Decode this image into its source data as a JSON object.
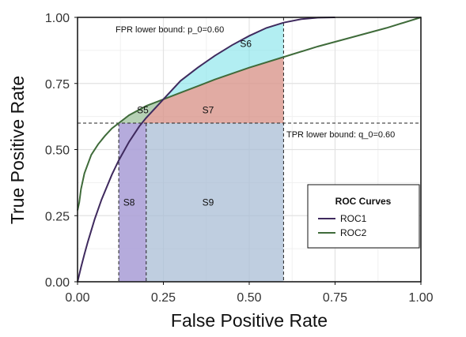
{
  "chart_data": {
    "type": "line",
    "xlabel": "False Positive Rate",
    "ylabel": "True Positive Rate",
    "xlim": [
      0,
      1
    ],
    "ylim": [
      0,
      1
    ],
    "xticks": [
      "0.00",
      "0.25",
      "0.50",
      "0.75",
      "1.00"
    ],
    "yticks": [
      "0.00",
      "0.25",
      "0.50",
      "0.75",
      "1.00"
    ],
    "grid": true,
    "colors": {
      "roc1": "#3f2a5e",
      "roc2": "#3f6b3a"
    },
    "series": [
      {
        "name": "ROC1",
        "x": [
          0,
          0.01,
          0.02,
          0.03,
          0.05,
          0.07,
          0.1,
          0.12,
          0.15,
          0.18,
          0.2,
          0.25,
          0.3,
          0.35,
          0.4,
          0.45,
          0.5,
          0.55,
          0.6,
          0.65,
          0.7,
          0.75
        ],
        "y": [
          0,
          0.054,
          0.104,
          0.151,
          0.237,
          0.311,
          0.405,
          0.459,
          0.529,
          0.588,
          0.62,
          0.69,
          0.76,
          0.81,
          0.855,
          0.895,
          0.93,
          0.96,
          0.98,
          0.993,
          0.999,
          1.0
        ]
      },
      {
        "name": "ROC2",
        "x": [
          0,
          0.005,
          0.01,
          0.02,
          0.04,
          0.06,
          0.08,
          0.1,
          0.15,
          0.2,
          0.25,
          0.3,
          0.4,
          0.5,
          0.6,
          0.7,
          0.8,
          0.9,
          1.0
        ],
        "y": [
          0.27,
          0.3,
          0.35,
          0.41,
          0.48,
          0.52,
          0.552,
          0.58,
          0.63,
          0.665,
          0.69,
          0.715,
          0.765,
          0.81,
          0.85,
          0.89,
          0.925,
          0.96,
          1.0
        ]
      }
    ],
    "bounds": {
      "fpr": {
        "value": 0.6,
        "label": "FPR lower bound: p_0=0.60"
      },
      "tpr": {
        "value": 0.6,
        "label": "TPR lower bound: q_0=0.60"
      }
    },
    "regions": [
      {
        "label": "S5",
        "at": [
          0.19,
          0.65
        ],
        "color": "#a9c9a8"
      },
      {
        "label": "S6",
        "at": [
          0.49,
          0.9
        ],
        "color": "#7fe3ea"
      },
      {
        "label": "S7",
        "at": [
          0.38,
          0.65
        ],
        "color": "#d9968c"
      },
      {
        "label": "S8",
        "at": [
          0.15,
          0.3
        ],
        "color": "#a89cd6"
      },
      {
        "label": "S9",
        "at": [
          0.38,
          0.3
        ],
        "color": "#a9bdd6"
      }
    ],
    "region_bounds": {
      "x_s8_left": 0.12,
      "x_s8_right": 0.2
    },
    "legend": {
      "title": "ROC Curves",
      "position": "center-right"
    }
  }
}
